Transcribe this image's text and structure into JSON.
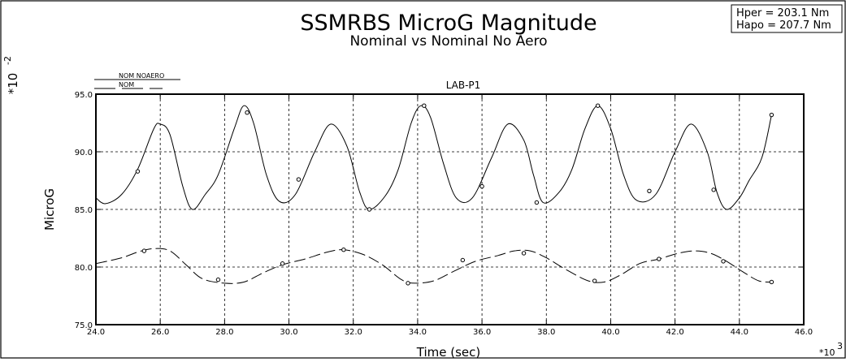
{
  "chart_data": {
    "type": "line",
    "title": "SSMRBS  MicroG  Magnitude",
    "subtitle": "Nominal  vs  Nominal  No  Aero",
    "info": [
      "Hper  =  203.1  Nm",
      "Hapo  =  207.7  Nm"
    ],
    "panel_label": "LAB-P1",
    "xlabel": "Time  (sec)",
    "ylabel": "MicroG",
    "x_multiplier": "*10",
    "x_multiplier_exp": "3",
    "y_multiplier": "*10",
    "y_multiplier_exp": "-2",
    "xlim": [
      24.0,
      46.0
    ],
    "ylim": [
      75.0,
      95.0
    ],
    "x_ticks": [
      "24.0",
      "26.0",
      "28.0",
      "30.0",
      "32.0",
      "34.0",
      "36.0",
      "38.0",
      "40.0",
      "42.0",
      "44.0",
      "46.0"
    ],
    "y_ticks": [
      "75.0",
      "80.0",
      "85.0",
      "90.0",
      "95.0"
    ],
    "grid": true,
    "legend_position": "top-left",
    "series": [
      {
        "name": "NOM_NOAERO",
        "style": "solid",
        "points": [
          [
            24.0,
            86.0
          ],
          [
            24.3,
            85.5
          ],
          [
            24.8,
            86.3
          ],
          [
            25.3,
            88.5
          ],
          [
            25.8,
            92.0
          ],
          [
            26.0,
            92.4
          ],
          [
            26.3,
            91.5
          ],
          [
            26.7,
            87.0
          ],
          [
            27.0,
            85.0
          ],
          [
            27.4,
            86.3
          ],
          [
            27.8,
            88.0
          ],
          [
            28.3,
            92.0
          ],
          [
            28.6,
            94.0
          ],
          [
            28.9,
            92.5
          ],
          [
            29.3,
            88.0
          ],
          [
            29.7,
            85.7
          ],
          [
            30.2,
            86.3
          ],
          [
            30.8,
            90.0
          ],
          [
            31.3,
            92.4
          ],
          [
            31.8,
            90.5
          ],
          [
            32.2,
            86.5
          ],
          [
            32.5,
            85.0
          ],
          [
            33.0,
            86.2
          ],
          [
            33.4,
            88.5
          ],
          [
            33.8,
            92.5
          ],
          [
            34.1,
            94.0
          ],
          [
            34.4,
            93.0
          ],
          [
            34.8,
            89.0
          ],
          [
            35.2,
            86.0
          ],
          [
            35.7,
            86.0
          ],
          [
            36.3,
            89.5
          ],
          [
            36.8,
            92.4
          ],
          [
            37.3,
            91.0
          ],
          [
            37.6,
            88.0
          ],
          [
            37.9,
            85.6
          ],
          [
            38.4,
            86.5
          ],
          [
            38.8,
            88.5
          ],
          [
            39.2,
            92.0
          ],
          [
            39.6,
            94.0
          ],
          [
            40.0,
            92.0
          ],
          [
            40.4,
            88.0
          ],
          [
            40.8,
            85.8
          ],
          [
            41.4,
            86.3
          ],
          [
            42.0,
            90.0
          ],
          [
            42.5,
            92.4
          ],
          [
            43.0,
            90.0
          ],
          [
            43.3,
            86.5
          ],
          [
            43.6,
            85.0
          ],
          [
            44.0,
            86.0
          ],
          [
            44.3,
            87.5
          ],
          [
            44.7,
            89.5
          ],
          [
            45.0,
            93.2
          ]
        ],
        "markers": [
          [
            25.3,
            88.3
          ],
          [
            28.7,
            93.4
          ],
          [
            30.3,
            87.6
          ],
          [
            32.5,
            85.0
          ],
          [
            34.2,
            94.0
          ],
          [
            36.0,
            87.0
          ],
          [
            37.7,
            85.6
          ],
          [
            39.6,
            94.0
          ],
          [
            41.2,
            86.6
          ],
          [
            43.2,
            86.7
          ],
          [
            45.0,
            93.2
          ]
        ]
      },
      {
        "name": "NOM",
        "style": "dashed",
        "points": [
          [
            24.0,
            80.3
          ],
          [
            24.8,
            80.8
          ],
          [
            25.3,
            81.3
          ],
          [
            25.8,
            81.6
          ],
          [
            26.3,
            81.4
          ],
          [
            26.8,
            80.2
          ],
          [
            27.3,
            79.0
          ],
          [
            28.0,
            78.6
          ],
          [
            28.6,
            78.7
          ],
          [
            29.2,
            79.5
          ],
          [
            29.8,
            80.2
          ],
          [
            30.5,
            80.7
          ],
          [
            31.2,
            81.3
          ],
          [
            31.7,
            81.5
          ],
          [
            32.3,
            81.1
          ],
          [
            32.9,
            80.2
          ],
          [
            33.5,
            78.9
          ],
          [
            33.9,
            78.6
          ],
          [
            34.5,
            78.8
          ],
          [
            35.1,
            79.6
          ],
          [
            35.8,
            80.5
          ],
          [
            36.5,
            81.0
          ],
          [
            37.0,
            81.4
          ],
          [
            37.5,
            81.4
          ],
          [
            38.0,
            80.8
          ],
          [
            38.6,
            79.8
          ],
          [
            39.3,
            78.8
          ],
          [
            39.8,
            78.7
          ],
          [
            40.3,
            79.3
          ],
          [
            40.9,
            80.3
          ],
          [
            41.5,
            80.7
          ],
          [
            42.1,
            81.2
          ],
          [
            42.6,
            81.4
          ],
          [
            43.1,
            81.2
          ],
          [
            43.6,
            80.5
          ],
          [
            44.1,
            79.6
          ],
          [
            44.6,
            78.8
          ],
          [
            45.0,
            78.7
          ]
        ],
        "markers": [
          [
            25.5,
            81.4
          ],
          [
            27.8,
            78.9
          ],
          [
            29.8,
            80.3
          ],
          [
            31.7,
            81.5
          ],
          [
            33.7,
            78.6
          ],
          [
            35.4,
            80.6
          ],
          [
            37.3,
            81.2
          ],
          [
            39.5,
            78.8
          ],
          [
            41.5,
            80.7
          ],
          [
            43.5,
            80.5
          ],
          [
            45.0,
            78.7
          ]
        ]
      }
    ],
    "legend": [
      {
        "label": "NOM  NOAERO",
        "style": "solid"
      },
      {
        "label": "NOM",
        "style": "dashed"
      }
    ]
  }
}
